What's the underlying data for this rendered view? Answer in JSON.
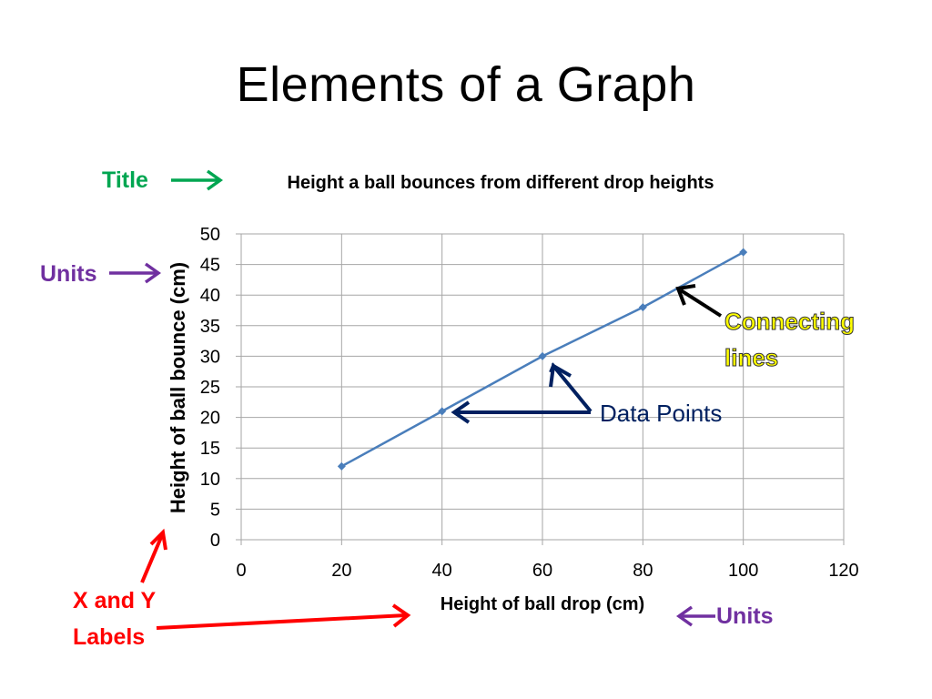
{
  "slide": {
    "title": "Elements of a Graph"
  },
  "chart_data": {
    "type": "line",
    "title": "Height a ball bounces from different drop heights",
    "xlabel": "Height of ball drop (cm)",
    "ylabel": "Height of ball bounce (cm)",
    "xlim": [
      0,
      120
    ],
    "ylim": [
      0,
      50
    ],
    "x_ticks": [
      0,
      20,
      40,
      60,
      80,
      100,
      120
    ],
    "y_ticks": [
      0,
      5,
      10,
      15,
      20,
      25,
      30,
      35,
      40,
      45,
      50
    ],
    "grid": true,
    "legend": "none",
    "x": [
      20,
      40,
      60,
      80,
      100
    ],
    "series": [
      {
        "values": [
          12,
          21,
          30,
          38,
          47
        ],
        "color": "#4a7ebb"
      }
    ]
  },
  "annotations": {
    "title_label": "Title",
    "units_left": "Units",
    "units_bottom": "Units",
    "connecting_line1": "Connecting",
    "connecting_line2": "lines",
    "data_points": "Data Points",
    "xy_labels_line1": "X and Y",
    "xy_labels_line2": "Labels"
  },
  "colors": {
    "title_annotation": "#00a651",
    "units_annotation": "#7030a0",
    "connecting_fill": "#ffff00",
    "data_points_annotation": "#002060",
    "labels_annotation": "#ff0000",
    "grid": "#a6a6a6",
    "series": "#4a7ebb"
  }
}
